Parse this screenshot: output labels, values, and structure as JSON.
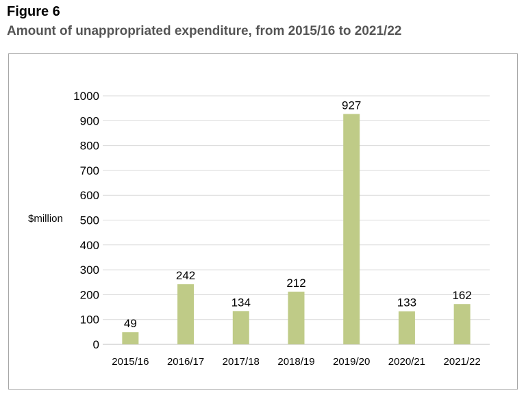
{
  "figure": {
    "label": "Figure 6",
    "title": "Amount of unappropriated expenditure, from 2015/16 to 2021/22"
  },
  "chart_data": {
    "type": "bar",
    "categories": [
      "2015/16",
      "2016/17",
      "2017/18",
      "2018/19",
      "2019/20",
      "2020/21",
      "2021/22"
    ],
    "values": [
      49,
      242,
      134,
      212,
      927,
      133,
      162
    ],
    "data_labels": [
      "49",
      "242",
      "134",
      "212",
      "927",
      "133",
      "162"
    ],
    "xlabel": "",
    "ylabel": "$million",
    "ylim": [
      0,
      1000
    ],
    "yticks": [
      "0",
      "100",
      "200",
      "300",
      "400",
      "500",
      "600",
      "700",
      "800",
      "900",
      "1000"
    ],
    "grid": true,
    "legend": "none",
    "bar_color": "#bfcb87",
    "grid_color": "#d9d9d9"
  }
}
